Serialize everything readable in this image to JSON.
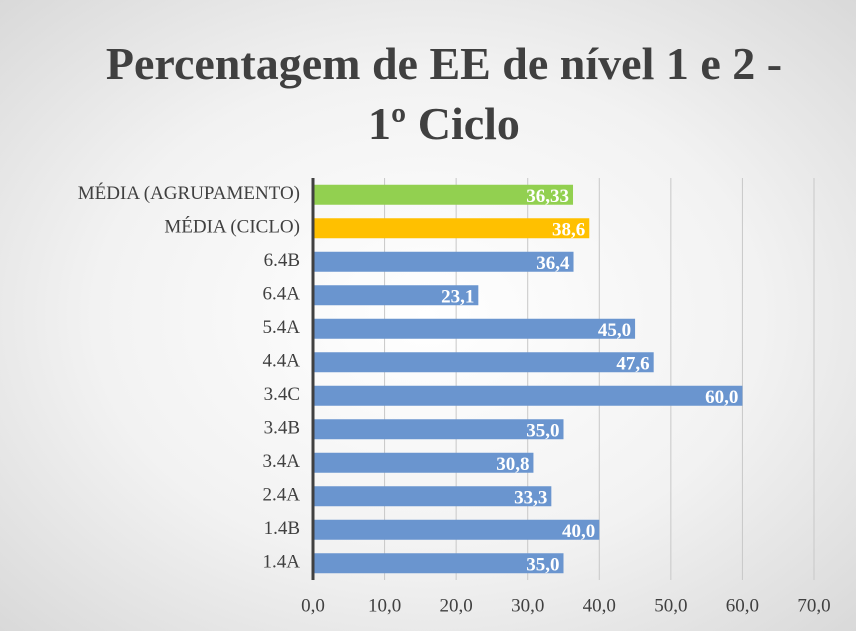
{
  "chart_data": {
    "type": "barh",
    "title": "Percentagem de EE de nível 1 e 2 - 1º Ciclo",
    "categories": [
      "MÉDIA (AGRUPAMENTO)",
      "MÉDIA (CICLO)",
      "6.4B",
      "6.4A",
      "5.4A",
      "4.4A",
      "3.4C",
      "3.4B",
      "3.4A",
      "2.4A",
      "1.4B",
      "1.4A"
    ],
    "values": [
      36.33,
      38.6,
      36.4,
      23.1,
      45.0,
      47.6,
      60.0,
      35.0,
      30.8,
      33.3,
      40.0,
      35.0
    ],
    "value_labels": [
      "36,33",
      "38,6",
      "36,4",
      "23,1",
      "45,0",
      "47,6",
      "60,0",
      "35,0",
      "30,8",
      "33,3",
      "40,0",
      "35,0"
    ],
    "colors": [
      "#92d050",
      "#ffc000",
      "#6a95cf",
      "#6a95cf",
      "#6a95cf",
      "#6a95cf",
      "#6a95cf",
      "#6a95cf",
      "#6a95cf",
      "#6a95cf",
      "#6a95cf",
      "#6a95cf"
    ],
    "xlim": [
      0,
      70
    ],
    "xticks": [
      {
        "value": 0,
        "label": "0,0"
      },
      {
        "value": 10,
        "label": "10,0"
      },
      {
        "value": 20,
        "label": "20,0"
      },
      {
        "value": 30,
        "label": "30,0"
      },
      {
        "value": 40,
        "label": "40,0"
      },
      {
        "value": 50,
        "label": "50,0"
      },
      {
        "value": 60,
        "label": "60,0"
      },
      {
        "value": 70,
        "label": "70,0"
      }
    ],
    "grid": true
  }
}
